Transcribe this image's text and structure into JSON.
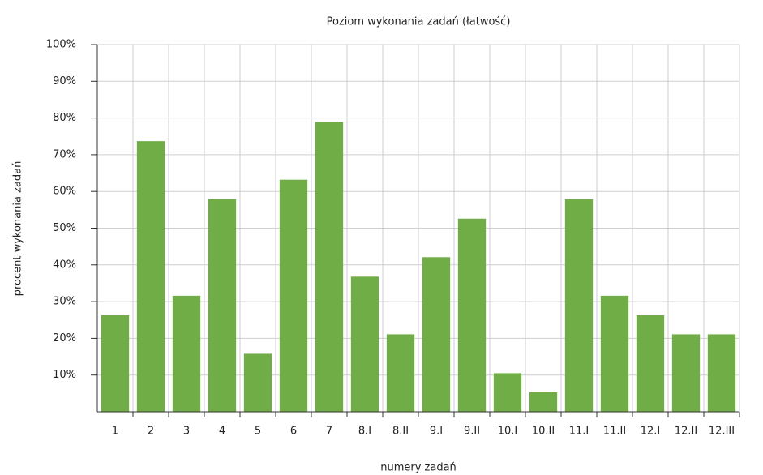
{
  "chart_data": {
    "type": "bar",
    "title": "Poziom wykonania zadań (łatwość)",
    "x_label": "numery zadań",
    "y_label": "procent wykonania zadań",
    "categories": [
      "1",
      "2",
      "3",
      "4",
      "5",
      "6",
      "7",
      "8.I",
      "8.II",
      "9.I",
      "9.II",
      "10.I",
      "10.II",
      "11.I",
      "11.II",
      "12.I",
      "12.II",
      "12.III"
    ],
    "values": [
      26.3,
      73.7,
      31.6,
      57.9,
      15.8,
      63.2,
      78.9,
      36.8,
      21.1,
      42.1,
      52.6,
      10.5,
      5.3,
      57.9,
      31.6,
      26.3,
      21.1,
      21.1
    ],
    "color": "#70ad47",
    "ylim": [
      0,
      100
    ],
    "yticks": [
      {
        "value": 10,
        "label": "10%"
      },
      {
        "value": 20,
        "label": "20%"
      },
      {
        "value": 30,
        "label": "30%"
      },
      {
        "value": 40,
        "label": "40%"
      },
      {
        "value": 50,
        "label": "50%"
      },
      {
        "value": 60,
        "label": "60%"
      },
      {
        "value": 70,
        "label": "70%"
      },
      {
        "value": 80,
        "label": "80%"
      },
      {
        "value": 90,
        "label": "90%"
      },
      {
        "value": 100,
        "label": "100%"
      }
    ],
    "grid": true
  }
}
